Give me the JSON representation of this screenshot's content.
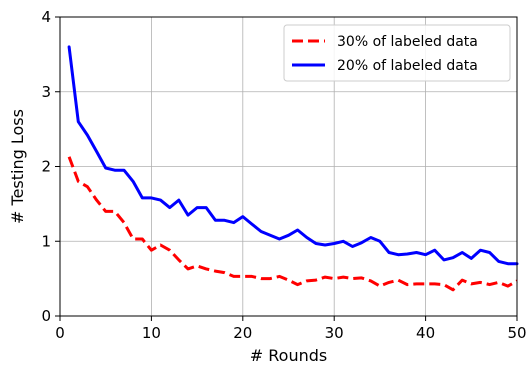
{
  "chart_data": {
    "type": "line",
    "title": "",
    "xlabel": "# Rounds",
    "ylabel": "# Testing Loss",
    "xlim": [
      0,
      50
    ],
    "ylim": [
      0,
      4
    ],
    "xticks": [
      0,
      10,
      20,
      30,
      40,
      50
    ],
    "yticks": [
      0,
      1,
      2,
      3,
      4
    ],
    "grid": true,
    "legend_position": "top-right",
    "x": [
      1,
      2,
      3,
      4,
      5,
      6,
      7,
      8,
      9,
      10,
      11,
      12,
      13,
      14,
      15,
      16,
      17,
      18,
      19,
      20,
      21,
      22,
      23,
      24,
      25,
      26,
      27,
      28,
      29,
      30,
      31,
      32,
      33,
      34,
      35,
      36,
      37,
      38,
      39,
      40,
      41,
      42,
      43,
      44,
      45,
      46,
      47,
      48,
      49,
      50
    ],
    "series": [
      {
        "name": "30% of labeled data",
        "color": "#ff0000",
        "style": "dashed",
        "values": [
          2.13,
          1.8,
          1.73,
          1.55,
          1.4,
          1.4,
          1.25,
          1.03,
          1.03,
          0.88,
          0.95,
          0.88,
          0.75,
          0.63,
          0.67,
          0.63,
          0.6,
          0.58,
          0.53,
          0.53,
          0.53,
          0.5,
          0.5,
          0.53,
          0.48,
          0.42,
          0.47,
          0.48,
          0.52,
          0.5,
          0.52,
          0.5,
          0.51,
          0.47,
          0.4,
          0.45,
          0.48,
          0.42,
          0.43,
          0.43,
          0.43,
          0.42,
          0.35,
          0.48,
          0.43,
          0.45,
          0.42,
          0.45,
          0.4,
          0.47
        ]
      },
      {
        "name": "20% of labeled data",
        "color": "#0000ff",
        "style": "solid",
        "values": [
          3.6,
          2.6,
          2.42,
          2.2,
          1.98,
          1.95,
          1.95,
          1.8,
          1.58,
          1.58,
          1.55,
          1.45,
          1.55,
          1.35,
          1.45,
          1.45,
          1.28,
          1.28,
          1.25,
          1.33,
          1.23,
          1.13,
          1.08,
          1.03,
          1.08,
          1.15,
          1.05,
          0.97,
          0.95,
          0.97,
          1.0,
          0.93,
          0.98,
          1.05,
          1.0,
          0.85,
          0.82,
          0.83,
          0.85,
          0.82,
          0.88,
          0.75,
          0.78,
          0.85,
          0.77,
          0.88,
          0.85,
          0.73,
          0.7,
          0.7
        ]
      }
    ]
  }
}
